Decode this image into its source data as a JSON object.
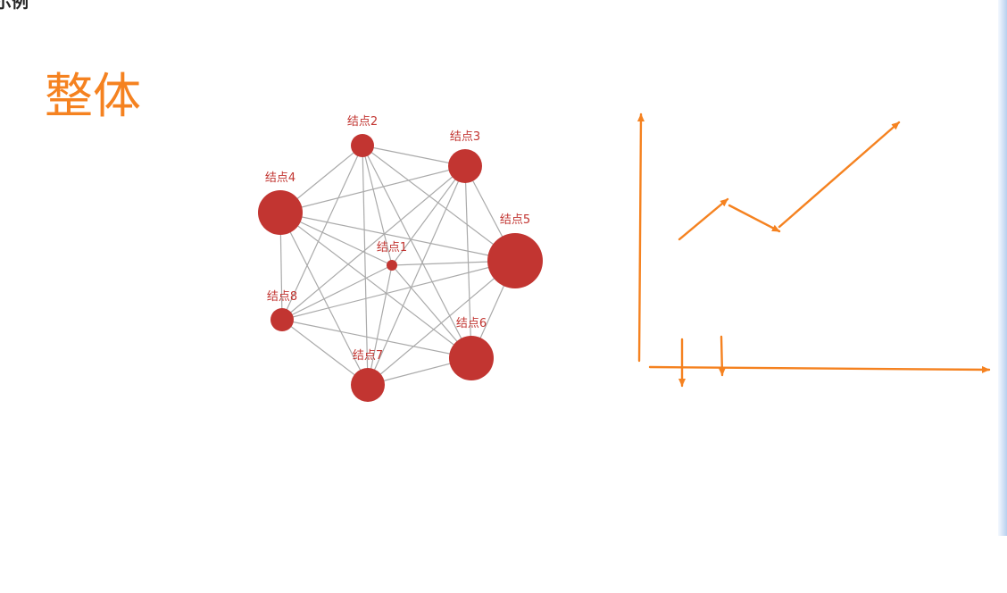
{
  "page": {
    "top_title": "示例",
    "section_heading": "整体",
    "accent_color": "#f58220"
  },
  "graph": {
    "node_color": "#c23531",
    "edge_color": "#aaaaaa",
    "label_color": "#c23531",
    "nodes": [
      {
        "id": "n1",
        "label": "结点1"
      },
      {
        "id": "n2",
        "label": "结点2"
      },
      {
        "id": "n3",
        "label": "结点3"
      },
      {
        "id": "n4",
        "label": "结点4"
      },
      {
        "id": "n5",
        "label": "结点5"
      },
      {
        "id": "n6",
        "label": "结点6"
      },
      {
        "id": "n7",
        "label": "结点7"
      },
      {
        "id": "n8",
        "label": "结点8"
      }
    ],
    "edges": [
      [
        "n1",
        "n2"
      ],
      [
        "n1",
        "n3"
      ],
      [
        "n1",
        "n4"
      ],
      [
        "n1",
        "n5"
      ],
      [
        "n1",
        "n6"
      ],
      [
        "n1",
        "n7"
      ],
      [
        "n1",
        "n8"
      ],
      [
        "n2",
        "n3"
      ],
      [
        "n2",
        "n4"
      ],
      [
        "n2",
        "n5"
      ],
      [
        "n2",
        "n6"
      ],
      [
        "n2",
        "n7"
      ],
      [
        "n2",
        "n8"
      ],
      [
        "n3",
        "n4"
      ],
      [
        "n3",
        "n5"
      ],
      [
        "n3",
        "n6"
      ],
      [
        "n3",
        "n7"
      ],
      [
        "n3",
        "n8"
      ],
      [
        "n4",
        "n5"
      ],
      [
        "n4",
        "n6"
      ],
      [
        "n4",
        "n7"
      ],
      [
        "n4",
        "n8"
      ],
      [
        "n5",
        "n6"
      ],
      [
        "n5",
        "n7"
      ],
      [
        "n5",
        "n8"
      ],
      [
        "n6",
        "n7"
      ],
      [
        "n6",
        "n8"
      ],
      [
        "n7",
        "n8"
      ]
    ]
  },
  "sketch": {
    "stroke_color": "#f58220"
  }
}
